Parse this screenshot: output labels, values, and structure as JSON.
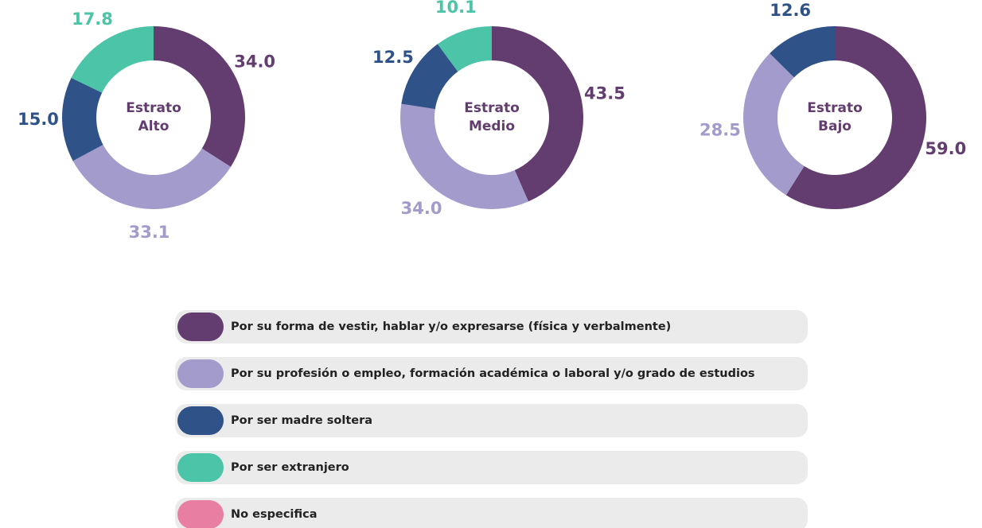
{
  "legend": {
    "labels": [
      "Por su forma de vestir, hablar y/o expresarse (física y verbalmente)",
      "Por su profesión o empleo, formación académica o laboral y/o grado de estudios",
      "Por ser madre soltera",
      "Por ser extranjero",
      "No especifica"
    ],
    "colors": [
      "#633c70",
      "#a39bcb",
      "#2f5289",
      "#4bc4a8",
      "#e87fa3"
    ]
  },
  "chart_data": [
    {
      "type": "donut",
      "title": "Estrato Alto",
      "values": [
        34.0,
        33.1,
        15.0,
        17.8,
        null
      ],
      "value_labels": [
        "34.0",
        "33.1",
        "15.0",
        "17.8",
        null
      ]
    },
    {
      "type": "donut",
      "title": "Estrato Medio",
      "values": [
        43.5,
        34.0,
        12.5,
        10.1,
        null
      ],
      "value_labels": [
        "43.5",
        "34.0",
        "12.5",
        "10.1",
        null
      ]
    },
    {
      "type": "donut",
      "title": "Estrato Bajo",
      "values": [
        59.0,
        28.5,
        12.6,
        null,
        null
      ],
      "value_labels": [
        "59.0",
        "28.5",
        "12.6",
        null,
        null
      ]
    }
  ]
}
